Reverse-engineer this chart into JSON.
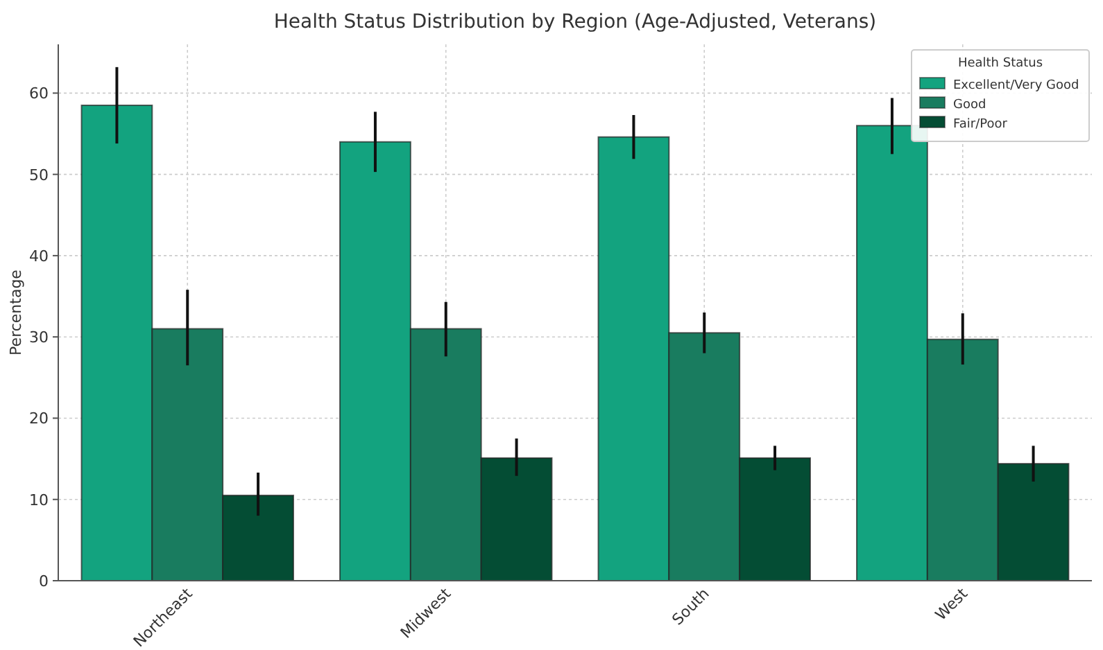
{
  "chart_data": {
    "type": "bar",
    "title": "Health Status Distribution by Region (Age-Adjusted, Veterans)",
    "ylabel": "Percentage",
    "legend_title": "Health Status",
    "categories": [
      "Northeast",
      "Midwest",
      "South",
      "West"
    ],
    "series": [
      {
        "name": "Excellent/Very Good",
        "color": "#13a37f",
        "values": [
          58.5,
          54,
          54.6,
          56
        ],
        "errors": [
          [
            53.8,
            63.2
          ],
          [
            50.3,
            57.7
          ],
          [
            51.9,
            57.3
          ],
          [
            52.5,
            59.4
          ]
        ]
      },
      {
        "name": "Good",
        "color": "#197c5f",
        "values": [
          31,
          31,
          30.5,
          29.7
        ],
        "errors": [
          [
            26.5,
            35.8
          ],
          [
            27.6,
            34.3
          ],
          [
            28,
            33
          ],
          [
            26.6,
            32.9
          ]
        ]
      },
      {
        "name": "Fair/Poor",
        "color": "#044d34",
        "values": [
          10.5,
          15.1,
          15.1,
          14.4
        ],
        "errors": [
          [
            8,
            13.3
          ],
          [
            12.9,
            17.5
          ],
          [
            13.6,
            16.6
          ],
          [
            12.2,
            16.6
          ]
        ]
      }
    ],
    "ylim": [
      0,
      66
    ],
    "yticks": [
      0,
      10,
      20,
      30,
      40,
      50,
      60
    ],
    "grid": true,
    "legend": "top right"
  }
}
